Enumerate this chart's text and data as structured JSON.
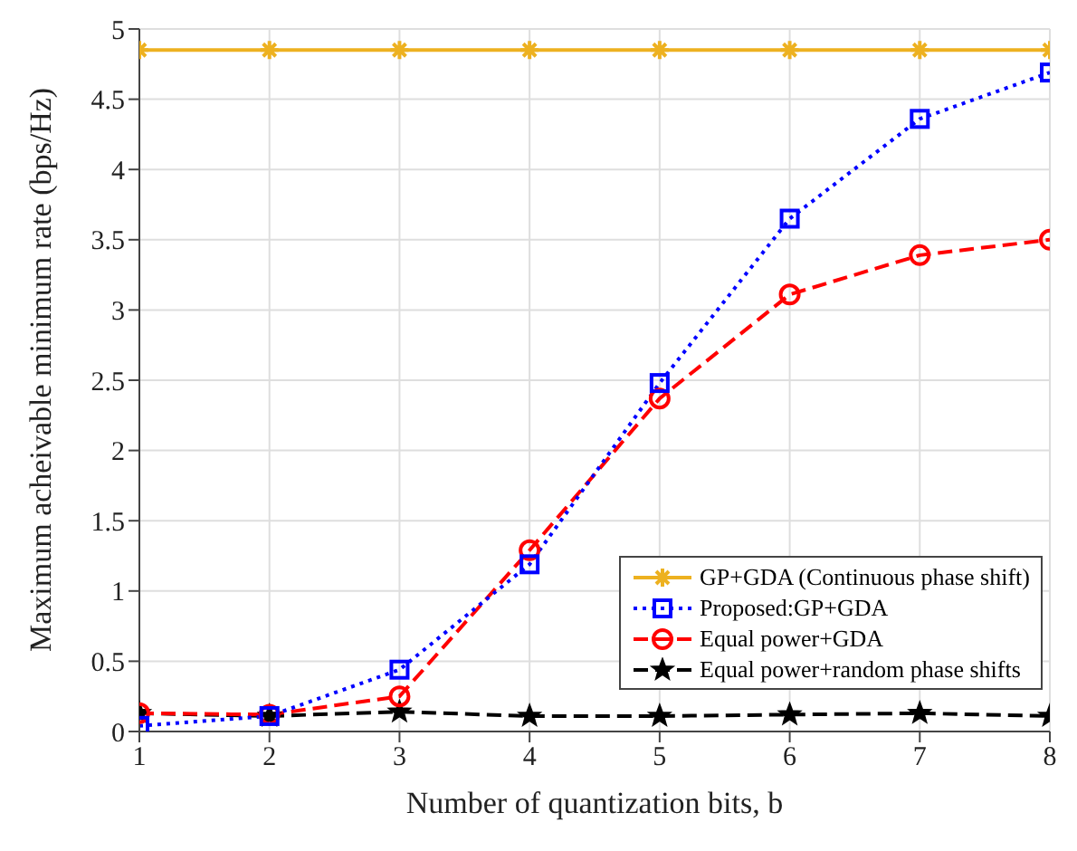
{
  "chart_data": {
    "type": "line",
    "xlabel": "Number of quantization bits, b",
    "ylabel": "Maximum acheivable minimum rate (bps/Hz)",
    "x": [
      1,
      2,
      3,
      4,
      5,
      6,
      7,
      8
    ],
    "xlim": [
      1,
      8
    ],
    "xticks": [
      1,
      2,
      3,
      4,
      5,
      6,
      7,
      8
    ],
    "ylim": [
      0,
      5
    ],
    "yticks": [
      0,
      0.5,
      1,
      1.5,
      2,
      2.5,
      3,
      3.5,
      4,
      4.5,
      5
    ],
    "grid": true,
    "legend": "bottom right",
    "series": [
      {
        "name": "GP+GDA (Continuous phase shift)",
        "color": "#edb120",
        "marker": "cross",
        "line_style": "solid",
        "values": [
          4.85,
          4.85,
          4.85,
          4.85,
          4.85,
          4.85,
          4.85,
          4.85
        ]
      },
      {
        "name": "Proposed:GP+GDA",
        "color": "#0000ff",
        "marker": "square",
        "line_style": "dotted",
        "values": [
          0.04,
          0.11,
          0.44,
          1.19,
          2.48,
          3.65,
          4.36,
          4.69
        ]
      },
      {
        "name": "Equal power+GDA",
        "color": "#ff0000",
        "marker": "circle",
        "line_style": "dashed",
        "values": [
          0.13,
          0.12,
          0.25,
          1.29,
          2.37,
          3.11,
          3.39,
          3.5
        ]
      },
      {
        "name": "Equal power+random phase shifts",
        "color": "#000000",
        "marker": "star",
        "line_style": "dashed",
        "values": [
          0.13,
          0.11,
          0.14,
          0.11,
          0.11,
          0.12,
          0.13,
          0.11
        ]
      }
    ]
  }
}
